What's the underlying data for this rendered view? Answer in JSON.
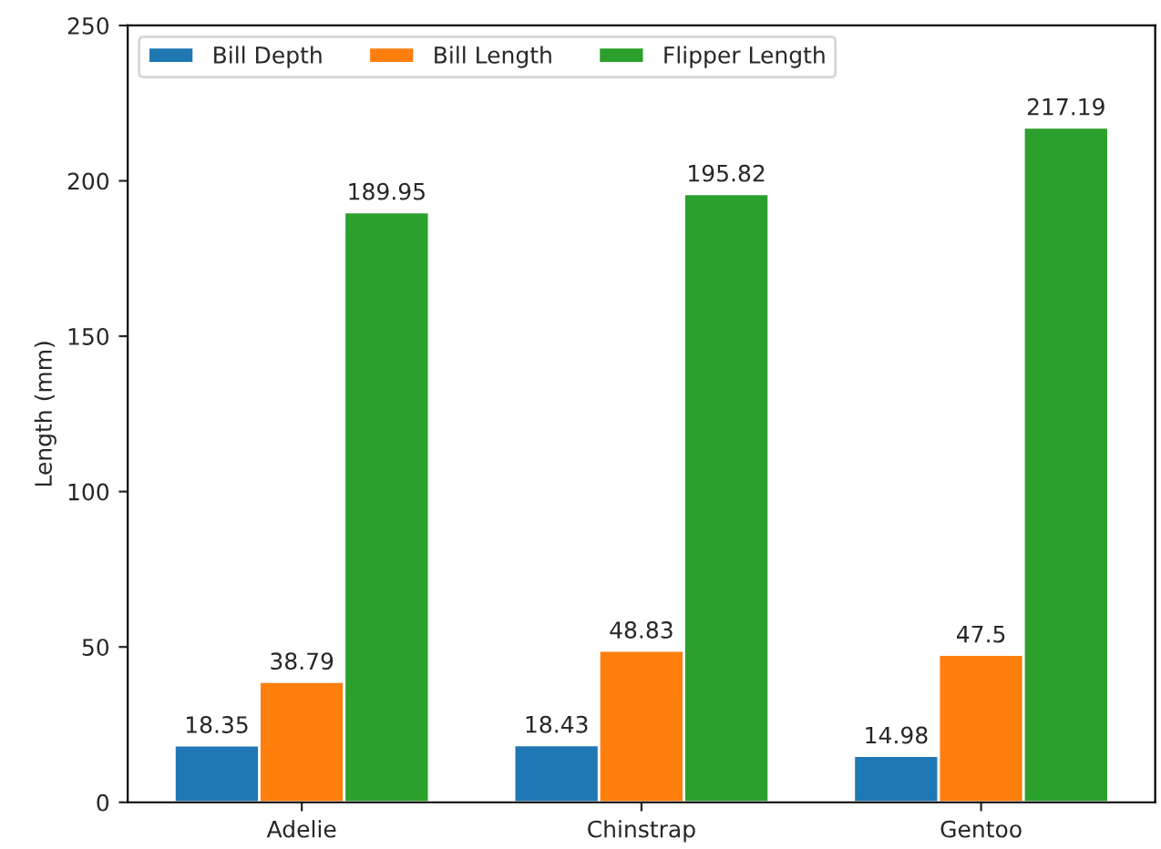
{
  "chart_data": {
    "type": "bar",
    "ylabel": "Length (mm)",
    "categories": [
      "Adelie",
      "Chinstrap",
      "Gentoo"
    ],
    "series": [
      {
        "name": "Bill Depth",
        "color": "#1f77b4",
        "values": [
          18.35,
          18.43,
          14.98
        ]
      },
      {
        "name": "Bill Length",
        "color": "#ff7f0e",
        "values": [
          38.79,
          48.83,
          47.5
        ]
      },
      {
        "name": "Flipper Length",
        "color": "#2ca02c",
        "values": [
          189.95,
          195.82,
          217.19
        ]
      }
    ],
    "ylim": [
      0,
      250
    ],
    "yticks": [
      0,
      50,
      100,
      150,
      200,
      250
    ],
    "data_labels": true,
    "legend": "top left",
    "grid": false
  }
}
